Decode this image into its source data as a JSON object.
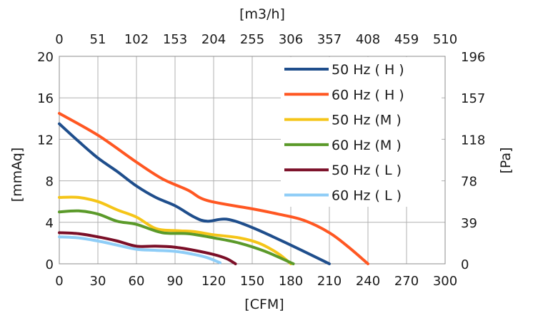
{
  "chart_data": {
    "type": "line",
    "xlabel_bottom": "[CFM]",
    "xlabel_top": "[m3/h]",
    "ylabel_left": "[mmAq]",
    "ylabel_right": "[Pa]",
    "xlim": [
      0,
      300
    ],
    "ylim": [
      0,
      20
    ],
    "grid": true,
    "legend_position": "top-right",
    "x_ticks_bottom": [
      "0",
      "30",
      "60",
      "90",
      "120",
      "150",
      "180",
      "210",
      "240",
      "270",
      "300"
    ],
    "x_ticks_top": [
      "0",
      "51",
      "102",
      "153",
      "204",
      "255",
      "306",
      "357",
      "408",
      "459",
      "510"
    ],
    "y_ticks_left": [
      "0",
      "4",
      "8",
      "12",
      "16",
      "20"
    ],
    "y_ticks_right": [
      "0",
      "39",
      "78",
      "118",
      "157",
      "196"
    ],
    "series": [
      {
        "name": "50 Hz ( H )",
        "color": "#1f4e8c",
        "points": [
          [
            0,
            13.5
          ],
          [
            15,
            11.8
          ],
          [
            30,
            10.2
          ],
          [
            45,
            8.9
          ],
          [
            60,
            7.5
          ],
          [
            75,
            6.4
          ],
          [
            90,
            5.6
          ],
          [
            105,
            4.5
          ],
          [
            115,
            4.1
          ],
          [
            130,
            4.3
          ],
          [
            150,
            3.5
          ],
          [
            180,
            1.8
          ],
          [
            210,
            0
          ]
        ]
      },
      {
        "name": "60 Hz ( H )",
        "color": "#ff5722",
        "points": [
          [
            0,
            14.5
          ],
          [
            30,
            12.4
          ],
          [
            60,
            9.8
          ],
          [
            80,
            8.2
          ],
          [
            100,
            7.1
          ],
          [
            115,
            6.1
          ],
          [
            150,
            5.3
          ],
          [
            170,
            4.8
          ],
          [
            190,
            4.2
          ],
          [
            210,
            3.0
          ],
          [
            225,
            1.6
          ],
          [
            240,
            0
          ]
        ]
      },
      {
        "name": "50 Hz (M )",
        "color": "#f5c518",
        "points": [
          [
            0,
            6.4
          ],
          [
            15,
            6.4
          ],
          [
            30,
            6.0
          ],
          [
            45,
            5.2
          ],
          [
            60,
            4.5
          ],
          [
            75,
            3.4
          ],
          [
            90,
            3.2
          ],
          [
            105,
            3.1
          ],
          [
            120,
            2.8
          ],
          [
            140,
            2.5
          ],
          [
            155,
            2.0
          ],
          [
            170,
            1.0
          ],
          [
            180,
            0
          ]
        ]
      },
      {
        "name": "60 Hz (M )",
        "color": "#5b9a2a",
        "points": [
          [
            0,
            5.0
          ],
          [
            15,
            5.1
          ],
          [
            30,
            4.8
          ],
          [
            45,
            4.1
          ],
          [
            60,
            3.8
          ],
          [
            80,
            3.0
          ],
          [
            100,
            2.9
          ],
          [
            120,
            2.5
          ],
          [
            140,
            2.0
          ],
          [
            160,
            1.2
          ],
          [
            182,
            0
          ]
        ]
      },
      {
        "name": "50 Hz ( L )",
        "color": "#7b0f28",
        "points": [
          [
            0,
            3.0
          ],
          [
            15,
            2.9
          ],
          [
            30,
            2.6
          ],
          [
            45,
            2.2
          ],
          [
            60,
            1.7
          ],
          [
            75,
            1.7
          ],
          [
            90,
            1.6
          ],
          [
            105,
            1.3
          ],
          [
            120,
            0.9
          ],
          [
            130,
            0.5
          ],
          [
            137,
            0.0
          ]
        ]
      },
      {
        "name": "60 Hz ( L )",
        "color": "#8ecdf7",
        "points": [
          [
            0,
            2.6
          ],
          [
            15,
            2.5
          ],
          [
            30,
            2.2
          ],
          [
            45,
            1.8
          ],
          [
            60,
            1.4
          ],
          [
            75,
            1.3
          ],
          [
            90,
            1.2
          ],
          [
            105,
            0.9
          ],
          [
            115,
            0.6
          ],
          [
            125,
            0.1
          ]
        ]
      }
    ]
  }
}
